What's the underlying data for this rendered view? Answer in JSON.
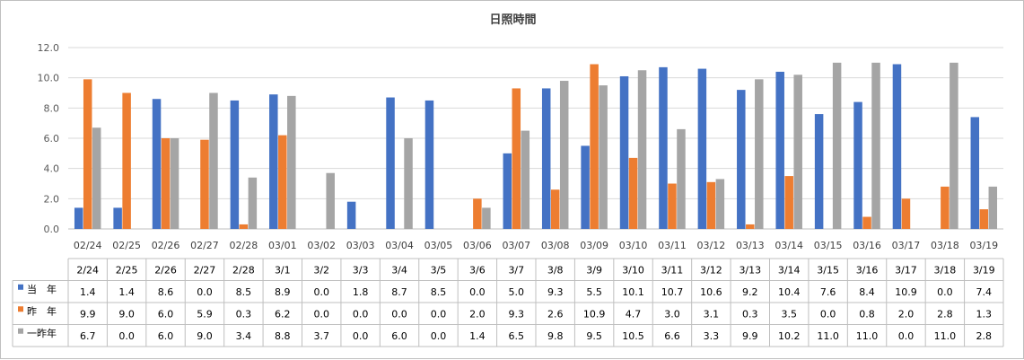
{
  "chart_data": {
    "type": "bar",
    "title": "日照時間",
    "categories": [
      "02/24",
      "02/25",
      "02/26",
      "02/27",
      "02/28",
      "03/01",
      "03/02",
      "03/03",
      "03/04",
      "03/05",
      "03/06",
      "03/07",
      "03/08",
      "03/09",
      "03/10",
      "03/11",
      "03/12",
      "03/13",
      "03/14",
      "03/15",
      "03/16",
      "03/17",
      "03/18",
      "03/19"
    ],
    "table_headers": [
      "2/24",
      "2/25",
      "2/26",
      "2/27",
      "2/28",
      "3/1",
      "3/2",
      "3/3",
      "3/4",
      "3/5",
      "3/6",
      "3/7",
      "3/8",
      "3/9",
      "3/10",
      "3/11",
      "3/12",
      "3/13",
      "3/14",
      "3/15",
      "3/16",
      "3/17",
      "3/18",
      "3/19"
    ],
    "ylim": [
      0,
      12
    ],
    "yticks": [
      "0.0",
      "2.0",
      "4.0",
      "6.0",
      "8.0",
      "10.0",
      "12.0"
    ],
    "grid": true,
    "legend": "table-rows",
    "series": [
      {
        "name": "当　年",
        "color": "#4472c4",
        "values": [
          1.4,
          1.4,
          8.6,
          0.0,
          8.5,
          8.9,
          0.0,
          1.8,
          8.7,
          8.5,
          0.0,
          5.0,
          9.3,
          5.5,
          10.1,
          10.7,
          10.6,
          9.2,
          10.4,
          7.6,
          8.4,
          10.9,
          0.0,
          7.4
        ],
        "labels": [
          "1.4",
          "1.4",
          "8.6",
          "0.0",
          "8.5",
          "8.9",
          "0.0",
          "1.8",
          "8.7",
          "8.5",
          "0.0",
          "5.0",
          "9.3",
          "5.5",
          "10.1",
          "10.7",
          "10.6",
          "9.2",
          "10.4",
          "7.6",
          "8.4",
          "10.9",
          "0.0",
          "7.4"
        ]
      },
      {
        "name": "昨　年",
        "color": "#ed7d31",
        "values": [
          9.9,
          9.0,
          6.0,
          5.9,
          0.3,
          6.2,
          0.0,
          0.0,
          0.0,
          0.0,
          2.0,
          9.3,
          2.6,
          10.9,
          4.7,
          3.0,
          3.1,
          0.3,
          3.5,
          0.0,
          0.8,
          2.0,
          2.8,
          1.3
        ],
        "labels": [
          "9.9",
          "9.0",
          "6.0",
          "5.9",
          "0.3",
          "6.2",
          "0.0",
          "0.0",
          "0.0",
          "0.0",
          "2.0",
          "9.3",
          "2.6",
          "10.9",
          "4.7",
          "3.0",
          "3.1",
          "0.3",
          "3.5",
          "0.0",
          "0.8",
          "2.0",
          "2.8",
          "1.3"
        ]
      },
      {
        "name": "一昨年",
        "color": "#a5a5a5",
        "values": [
          6.7,
          0.0,
          6.0,
          9.0,
          3.4,
          8.8,
          3.7,
          0.0,
          6.0,
          0.0,
          1.4,
          6.5,
          9.8,
          9.5,
          10.5,
          6.6,
          3.3,
          9.9,
          10.2,
          11.0,
          11.0,
          0.0,
          11.0,
          2.8
        ],
        "labels": [
          "6.7",
          "0.0",
          "6.0",
          "9.0",
          "3.4",
          "8.8",
          "3.7",
          "0.0",
          "6.0",
          "0.0",
          "1.4",
          "6.5",
          "9.8",
          "9.5",
          "10.5",
          "6.6",
          "3.3",
          "9.9",
          "10.2",
          "11.0",
          "11.0",
          "0.0",
          "11.0",
          "2.8"
        ]
      }
    ]
  }
}
